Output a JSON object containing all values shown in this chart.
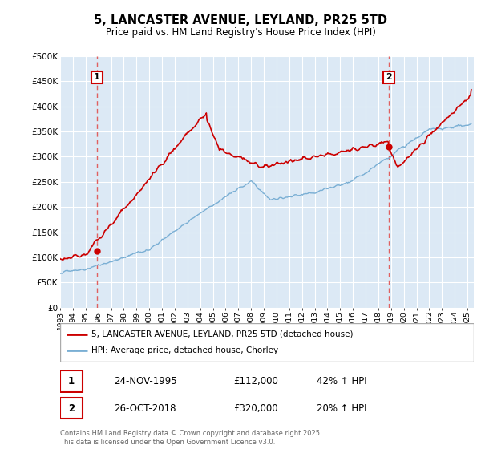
{
  "title1": "5, LANCASTER AVENUE, LEYLAND, PR25 5TD",
  "title2": "Price paid vs. HM Land Registry's House Price Index (HPI)",
  "ylim": [
    0,
    500000
  ],
  "yticks": [
    0,
    50000,
    100000,
    150000,
    200000,
    250000,
    300000,
    350000,
    400000,
    450000,
    500000
  ],
  "ytick_labels": [
    "£0",
    "£50K",
    "£100K",
    "£150K",
    "£200K",
    "£250K",
    "£300K",
    "£350K",
    "£400K",
    "£450K",
    "£500K"
  ],
  "sale1_date": 1995.9,
  "sale1_price": 112000,
  "sale2_date": 2018.82,
  "sale2_price": 320000,
  "hpi_color": "#7aafd4",
  "price_color": "#cc0000",
  "vline_color": "#e06060",
  "bg_color": "#dce9f5",
  "grid_color": "#ffffff",
  "legend1": "5, LANCASTER AVENUE, LEYLAND, PR25 5TD (detached house)",
  "legend2": "HPI: Average price, detached house, Chorley",
  "label1_date": "24-NOV-1995",
  "label1_price": "£112,000",
  "label1_hpi": "42% ↑ HPI",
  "label2_date": "26-OCT-2018",
  "label2_price": "£320,000",
  "label2_hpi": "20% ↑ HPI",
  "footnote": "Contains HM Land Registry data © Crown copyright and database right 2025.\nThis data is licensed under the Open Government Licence v3.0."
}
